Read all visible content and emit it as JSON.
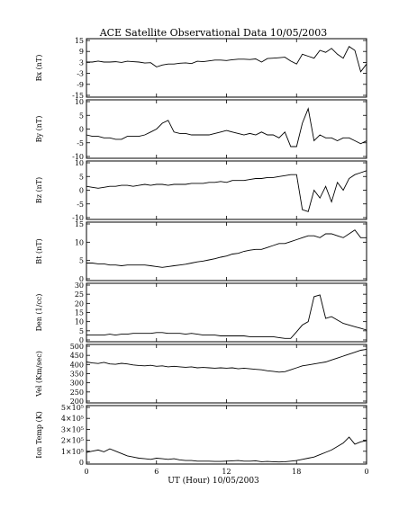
{
  "chart_data": {
    "type": "line",
    "title": "ACE Satellite Observational Data   10/05/2003",
    "xlabel": "UT (Hour)   10/05/2003",
    "xlim": [
      0,
      24
    ],
    "xticks": [
      "0",
      "6",
      "12",
      "18",
      "0"
    ],
    "grid": false,
    "panels": [
      {
        "key": "bx",
        "ylabel": "Bx (nT)",
        "ylim": [
          -15,
          15
        ],
        "yticks": [
          "15",
          "9",
          "3",
          "-3",
          "-9",
          "-15"
        ],
        "series": [
          {
            "x": [
              0,
              0.5,
              1,
              1.5,
              2,
              2.5,
              3,
              3.5,
              4,
              4.5,
              5,
              5.5,
              6,
              6.5,
              7,
              7.5,
              8,
              8.5,
              9,
              9.5,
              10,
              10.5,
              11,
              11.5,
              12,
              12.5,
              13,
              13.5,
              14,
              14.5,
              15,
              15.5,
              16,
              16.5,
              17,
              17.5,
              18,
              18.5,
              19,
              19.5,
              20,
              20.5,
              21,
              21.5,
              22,
              22.5,
              23,
              23.5,
              24
            ],
            "y": [
              3,
              3,
              3.5,
              3,
              3,
              3.2,
              2.8,
              3.4,
              3.2,
              3,
              2.5,
              2.7,
              0.5,
              1.5,
              2,
              2,
              2.4,
              2.6,
              2.2,
              3.4,
              3.2,
              3.6,
              4,
              4,
              3.8,
              4.2,
              4.5,
              4.5,
              4.3,
              4.6,
              3,
              4.8,
              5,
              5.2,
              5.5,
              3.5,
              2,
              7,
              6,
              5,
              9,
              8,
              10,
              7,
              5,
              11,
              9,
              -2,
              2
            ]
          }
        ]
      },
      {
        "key": "by",
        "ylabel": "By (nT)",
        "ylim": [
          -10,
          10
        ],
        "yticks": [
          "10",
          "5",
          "0",
          "-5",
          "-10"
        ],
        "series": [
          {
            "x": [
              0,
              0.5,
              1,
              1.5,
              2,
              2.5,
              3,
              3.5,
              4,
              4.5,
              5,
              5.5,
              6,
              6.5,
              7,
              7.5,
              8,
              8.5,
              9,
              9.5,
              10,
              10.5,
              11,
              11.5,
              12,
              12.5,
              13,
              13.5,
              14,
              14.5,
              15,
              15.5,
              16,
              16.5,
              17,
              17.5,
              18,
              18.5,
              19,
              19.5,
              20,
              20.5,
              21,
              21.5,
              22,
              22.5,
              23,
              23.5,
              24
            ],
            "y": [
              -2,
              -2.5,
              -2.5,
              -3,
              -3,
              -3.5,
              -3.5,
              -2.5,
              -2.5,
              -2.5,
              -2,
              -1,
              0,
              2,
              3,
              -1,
              -1.5,
              -1.5,
              -2,
              -2,
              -2,
              -2,
              -1.5,
              -1,
              -0.5,
              -1,
              -1.5,
              -2,
              -1.5,
              -2,
              -1,
              -2,
              -2,
              -3,
              -1,
              -6,
              -6,
              2,
              7,
              -4,
              -2,
              -3,
              -3,
              -4,
              -3,
              -3,
              -4,
              -5,
              -4
            ]
          }
        ]
      },
      {
        "key": "bz",
        "ylabel": "Bz (nT)",
        "ylim": [
          -15,
          15
        ],
        "yticks": [
          "10",
          "5",
          "0",
          "-5",
          "-10"
        ],
        "series": [
          {
            "x": [
              0,
              0.5,
              1,
              1.5,
              2,
              2.5,
              3,
              3.5,
              4,
              4.5,
              5,
              5.5,
              6,
              6.5,
              7,
              7.5,
              8,
              8.5,
              9,
              9.5,
              10,
              10.5,
              11,
              11.5,
              12,
              12.5,
              13,
              13.5,
              14,
              14.5,
              15,
              15.5,
              16,
              16.5,
              17,
              17.5,
              18,
              18.5,
              19,
              19.5,
              20,
              20.5,
              21,
              21.5,
              22,
              22.5,
              23,
              23.5,
              24
            ],
            "y": [
              2,
              1.5,
              1,
              1.5,
              2,
              2,
              2.5,
              2.5,
              2,
              2.5,
              3,
              2.5,
              3,
              3,
              2.5,
              3,
              3,
              3,
              3.5,
              3.5,
              3.5,
              4,
              4,
              4.5,
              4,
              5,
              5,
              5,
              5.5,
              6,
              6,
              6.5,
              6.5,
              7,
              7.5,
              8,
              8,
              -10,
              -11,
              0,
              -4,
              2,
              -6,
              4,
              0,
              6,
              8,
              9,
              10
            ]
          }
        ]
      },
      {
        "key": "bt",
        "ylabel": "Bt (nT)",
        "ylim": [
          0,
          15
        ],
        "yticks": [
          "15",
          "10",
          "5",
          "0"
        ],
        "series": [
          {
            "x": [
              0,
              0.5,
              1,
              1.5,
              2,
              2.5,
              3,
              3.5,
              4,
              4.5,
              5,
              5.5,
              6,
              6.5,
              7,
              7.5,
              8,
              8.5,
              9,
              9.5,
              10,
              10.5,
              11,
              11.5,
              12,
              12.5,
              13,
              13.5,
              14,
              14.5,
              15,
              15.5,
              16,
              16.5,
              17,
              17.5,
              18,
              18.5,
              19,
              19.5,
              20,
              20.5,
              21,
              21.5,
              22,
              22.5,
              23,
              23.5,
              24
            ],
            "y": [
              4.5,
              4.5,
              4.3,
              4.3,
              4,
              4,
              3.8,
              4,
              4,
              4,
              4,
              3.8,
              3.6,
              3.4,
              3.6,
              3.8,
              4,
              4.2,
              4.5,
              4.8,
              5,
              5.3,
              5.6,
              6,
              6.3,
              6.8,
              7,
              7.5,
              7.8,
              8,
              8,
              8.5,
              9,
              9.5,
              9.5,
              10,
              10.5,
              11,
              11.5,
              11.5,
              11,
              12,
              12,
              11.5,
              11,
              12,
              13,
              11,
              11
            ]
          }
        ]
      },
      {
        "key": "den",
        "ylabel": "Den (1/cc)",
        "ylim": [
          0,
          35
        ],
        "yticks": [
          "30",
          "25",
          "20",
          "15",
          "10",
          "5",
          "0"
        ],
        "series": [
          {
            "x": [
              0,
              0.5,
              1,
              1.5,
              2,
              2.5,
              3,
              3.5,
              4,
              4.5,
              5,
              5.5,
              6,
              6.5,
              7,
              7.5,
              8,
              8.5,
              9,
              9.5,
              10,
              10.5,
              11,
              11.5,
              12,
              12.5,
              13,
              13.5,
              14,
              14.5,
              15,
              15.5,
              16,
              16.5,
              17,
              17.5,
              18,
              18.5,
              19,
              19.5,
              20,
              20.5,
              21,
              21.5,
              22,
              22.5,
              23,
              23.5,
              24
            ],
            "y": [
              4,
              4,
              4,
              4,
              4.5,
              4,
              4.5,
              4.5,
              5,
              5,
              5,
              5,
              5.5,
              5.5,
              5,
              5,
              5,
              4.5,
              5,
              4.5,
              4,
              4,
              4,
              3.5,
              3.5,
              3.5,
              3.5,
              3.5,
              3,
              3,
              3,
              3,
              3,
              2.5,
              2,
              2,
              6,
              10,
              12,
              27,
              28,
              14,
              15,
              13,
              11,
              10,
              9,
              8,
              7
            ]
          }
        ]
      },
      {
        "key": "vel",
        "ylabel": "Vel (Km/sec)",
        "ylim": [
          200,
          500
        ],
        "yticks": [
          "500",
          "450",
          "400",
          "350",
          "300",
          "250",
          "200"
        ],
        "series": [
          {
            "x": [
              0,
              0.5,
              1,
              1.5,
              2,
              2.5,
              3,
              3.5,
              4,
              4.5,
              5,
              5.5,
              6,
              6.5,
              7,
              7.5,
              8,
              8.5,
              9,
              9.5,
              10,
              10.5,
              11,
              11.5,
              12,
              12.5,
              13,
              13.5,
              14,
              14.5,
              15,
              15.5,
              16,
              16.5,
              17,
              17.5,
              18,
              18.5,
              19,
              19.5,
              20,
              20.5,
              21,
              21.5,
              22,
              22.5,
              23,
              23.5,
              24
            ],
            "y": [
              410,
              405,
              402,
              408,
              400,
              398,
              403,
              400,
              395,
              392,
              390,
              393,
              388,
              390,
              385,
              388,
              385,
              383,
              385,
              380,
              382,
              380,
              378,
              380,
              378,
              380,
              375,
              378,
              375,
              372,
              370,
              365,
              362,
              358,
              360,
              370,
              380,
              390,
              395,
              400,
              405,
              410,
              420,
              430,
              440,
              450,
              460,
              470,
              475
            ]
          }
        ]
      },
      {
        "key": "temp",
        "ylabel": "Ion Temp (K)",
        "ylim": [
          0,
          500000
        ],
        "yticks": [
          "5×10⁵",
          "4×10⁵",
          "3×10⁵",
          "2×10⁵",
          "1×10⁵",
          "0"
        ],
        "series": [
          {
            "x": [
              0,
              0.5,
              1,
              1.5,
              2,
              2.5,
              3,
              3.5,
              4,
              4.5,
              5,
              5.5,
              6,
              6.5,
              7,
              7.5,
              8,
              8.5,
              9,
              9.5,
              10,
              10.5,
              11,
              11.5,
              12,
              12.5,
              13,
              13.5,
              14,
              14.5,
              15,
              15.5,
              16,
              16.5,
              17,
              17.5,
              18,
              18.5,
              19,
              19.5,
              20,
              20.5,
              21,
              21.5,
              22,
              22.5,
              23,
              23.5,
              24
            ],
            "y": [
              100000,
              110000,
              120000,
              105000,
              130000,
              110000,
              90000,
              70000,
              60000,
              50000,
              45000,
              40000,
              50000,
              45000,
              40000,
              45000,
              35000,
              30000,
              30000,
              25000,
              25000,
              25000,
              22000,
              22000,
              25000,
              28000,
              30000,
              25000,
              25000,
              28000,
              20000,
              22000,
              20000,
              18000,
              20000,
              25000,
              30000,
              40000,
              50000,
              60000,
              80000,
              100000,
              120000,
              150000,
              180000,
              230000,
              170000,
              190000,
              200000
            ]
          }
        ]
      }
    ]
  }
}
